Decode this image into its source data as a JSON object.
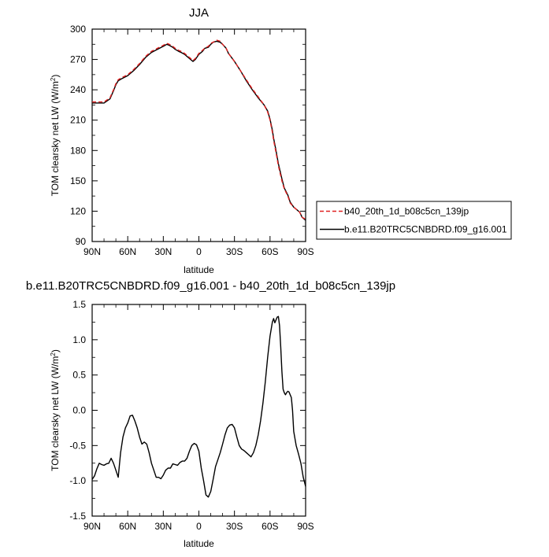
{
  "chart_data": [
    {
      "type": "line",
      "title": "JJA",
      "xlabel": "latitude",
      "ylabel": "TOM clearsky net LW (W/m²)",
      "xlim": [
        90,
        -90
      ],
      "ylim": [
        90,
        300
      ],
      "x_ticks": [
        90,
        60,
        30,
        0,
        -30,
        -60,
        -90
      ],
      "x_tick_labels": [
        "90N",
        "60N",
        "30N",
        "0",
        "30S",
        "60S",
        "90S"
      ],
      "y_ticks": [
        90,
        120,
        150,
        180,
        210,
        240,
        270,
        300
      ],
      "y_tick_labels": [
        "90",
        "120",
        "150",
        "180",
        "210",
        "240",
        "270",
        "300"
      ],
      "grid": false,
      "legend_position": "right",
      "x": [
        90,
        85,
        80,
        75,
        72,
        70,
        68,
        65,
        60,
        55,
        50,
        45,
        40,
        35,
        30,
        27,
        25,
        22,
        20,
        17,
        15,
        12,
        10,
        7,
        5,
        3,
        0,
        -3,
        -5,
        -8,
        -10,
        -12,
        -15,
        -18,
        -20,
        -23,
        -25,
        -30,
        -35,
        -40,
        -45,
        -50,
        -55,
        -58,
        -60,
        -62,
        -63,
        -65,
        -67,
        -70,
        -72,
        -75,
        -77,
        -80,
        -82,
        -85,
        -87,
        -90
      ],
      "series": [
        {
          "name": "b40_20th_1d_b08c5cn_139jp",
          "color": "#e02020",
          "dash": true,
          "values": [
            228,
            228,
            228,
            232,
            240,
            246,
            250,
            252,
            255,
            260,
            266,
            273,
            278,
            281,
            284,
            286,
            285,
            283,
            281,
            279,
            278,
            276,
            274,
            271,
            269,
            271,
            276,
            279,
            281,
            283,
            286,
            287,
            289,
            288,
            285,
            281,
            276,
            268,
            259,
            250,
            241,
            233,
            225,
            218,
            210,
            198,
            190,
            178,
            165,
            150,
            142,
            135,
            128,
            124,
            122,
            119,
            114,
            112
          ]
        },
        {
          "name": "b.e11.B20TRC5CNBDRD.f09_g16.001",
          "color": "#000000",
          "dash": false,
          "values": [
            227,
            227,
            227,
            231,
            239,
            245,
            249,
            251,
            254,
            259,
            265,
            272,
            277,
            280,
            283,
            285,
            284,
            282,
            280,
            278,
            277,
            275,
            273,
            270,
            268,
            270,
            275,
            278,
            281,
            282,
            285,
            287,
            288,
            287,
            285,
            281,
            276,
            268,
            259,
            249,
            240,
            232,
            225,
            219,
            211,
            200,
            192,
            180,
            167,
            152,
            143,
            136,
            129,
            124,
            122,
            119,
            114,
            111
          ]
        }
      ]
    },
    {
      "type": "line",
      "title": "b.e11.B20TRC5CNBDRD.f09_g16.001 - b40_20th_1d_b08c5cn_139jp",
      "xlabel": "latitude",
      "ylabel": "TOM clearsky net LW (W/m²)",
      "xlim": [
        90,
        -90
      ],
      "ylim": [
        -1.5,
        1.5
      ],
      "x_ticks": [
        90,
        60,
        30,
        0,
        -30,
        -60,
        -90
      ],
      "x_tick_labels": [
        "90N",
        "60N",
        "30N",
        "0",
        "30S",
        "60S",
        "90S"
      ],
      "y_ticks": [
        -1.5,
        -1.0,
        -0.5,
        0.0,
        0.5,
        1.0,
        1.5
      ],
      "y_tick_labels": [
        "-1.5",
        "-1.0",
        "-0.5",
        "0.0",
        "0.5",
        "1.0",
        "1.5"
      ],
      "grid": false,
      "x": [
        90,
        88,
        86,
        84,
        82,
        80,
        78,
        76,
        74,
        72,
        71,
        70,
        68,
        66,
        64,
        62,
        60,
        58,
        56,
        54,
        52,
        50,
        48,
        46,
        44,
        42,
        40,
        38,
        36,
        34,
        32,
        30,
        28,
        26,
        24,
        22,
        20,
        18,
        16,
        14,
        12,
        10,
        8,
        6,
        4,
        2,
        0,
        -2,
        -4,
        -6,
        -8,
        -10,
        -12,
        -14,
        -16,
        -18,
        -20,
        -22,
        -24,
        -26,
        -28,
        -30,
        -32,
        -34,
        -36,
        -38,
        -40,
        -42,
        -44,
        -46,
        -48,
        -50,
        -52,
        -54,
        -56,
        -58,
        -60,
        -61,
        -62,
        -63,
        -64,
        -65,
        -66,
        -67,
        -68,
        -69,
        -70,
        -71,
        -72,
        -73,
        -74,
        -75,
        -76,
        -77,
        -78,
        -79,
        -80,
        -82,
        -84,
        -86,
        -88,
        -90
      ],
      "series": [
        {
          "name": "",
          "color": "#000000",
          "dash": false,
          "values": [
            -0.98,
            -0.93,
            -0.83,
            -0.75,
            -0.77,
            -0.78,
            -0.76,
            -0.75,
            -0.68,
            -0.75,
            -0.8,
            -0.85,
            -0.95,
            -0.6,
            -0.38,
            -0.25,
            -0.18,
            -0.08,
            -0.07,
            -0.15,
            -0.25,
            -0.38,
            -0.48,
            -0.45,
            -0.48,
            -0.6,
            -0.75,
            -0.85,
            -0.95,
            -0.95,
            -0.97,
            -0.92,
            -0.85,
            -0.82,
            -0.82,
            -0.76,
            -0.77,
            -0.78,
            -0.74,
            -0.72,
            -0.72,
            -0.68,
            -0.58,
            -0.5,
            -0.47,
            -0.49,
            -0.58,
            -0.82,
            -1.0,
            -1.2,
            -1.23,
            -1.15,
            -0.98,
            -0.8,
            -0.7,
            -0.6,
            -0.48,
            -0.35,
            -0.25,
            -0.21,
            -0.2,
            -0.25,
            -0.38,
            -0.5,
            -0.55,
            -0.57,
            -0.6,
            -0.63,
            -0.66,
            -0.6,
            -0.5,
            -0.35,
            -0.15,
            0.1,
            0.4,
            0.75,
            1.05,
            1.15,
            1.25,
            1.3,
            1.24,
            1.28,
            1.32,
            1.33,
            1.2,
            0.9,
            0.55,
            0.3,
            0.25,
            0.22,
            0.25,
            0.27,
            0.26,
            0.22,
            0.18,
            0.0,
            -0.3,
            -0.5,
            -0.62,
            -0.75,
            -0.95,
            -1.08
          ]
        }
      ]
    }
  ]
}
